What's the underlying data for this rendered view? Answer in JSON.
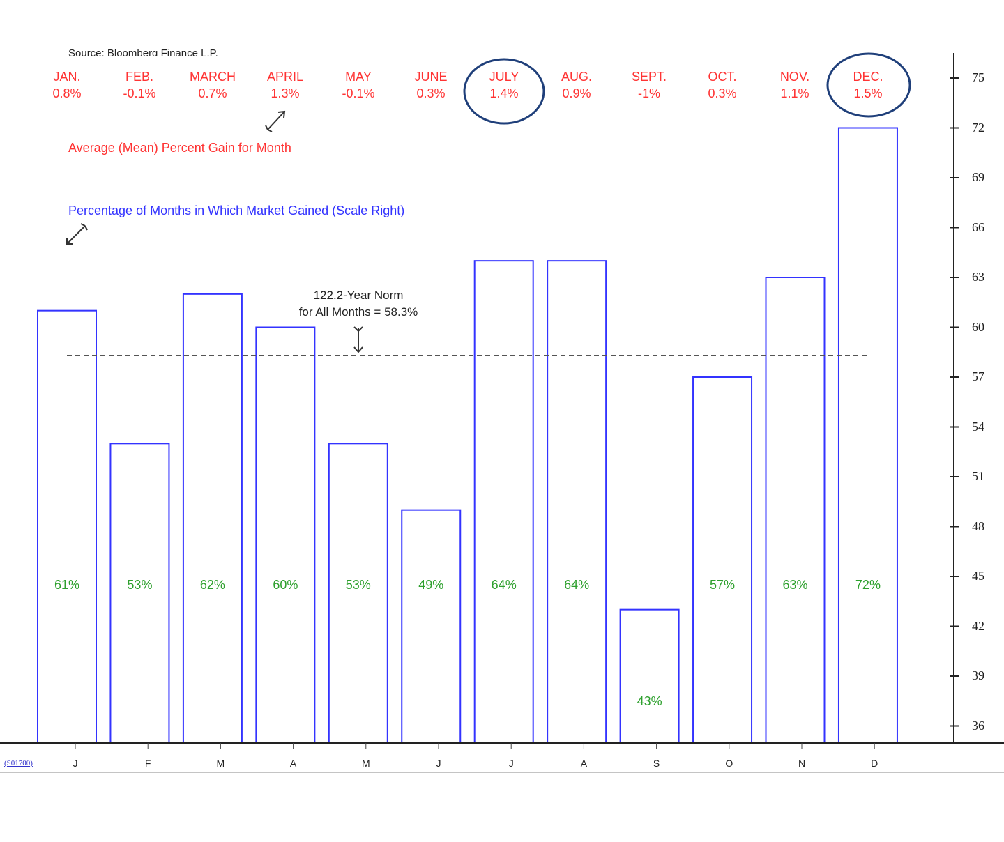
{
  "source_text": "Source: Bloomberg Finance L.P.",
  "ticker_link": "(S01700)",
  "month_headers": [
    {
      "name": "JAN.",
      "value": "0.8%"
    },
    {
      "name": "FEB.",
      "value": "-0.1%"
    },
    {
      "name": "MARCH",
      "value": "0.7%"
    },
    {
      "name": "APRIL",
      "value": "1.3%"
    },
    {
      "name": "MAY",
      "value": "-0.1%"
    },
    {
      "name": "JUNE",
      "value": "0.3%"
    },
    {
      "name": "JULY",
      "value": "1.4%"
    },
    {
      "name": "AUG.",
      "value": "0.9%"
    },
    {
      "name": "SEPT.",
      "value": "-1%"
    },
    {
      "name": "OCT.",
      "value": "0.3%"
    },
    {
      "name": "NOV.",
      "value": "1.1%"
    },
    {
      "name": "DEC.",
      "value": "1.5%"
    }
  ],
  "circled_months": [
    "JULY",
    "DEC."
  ],
  "legend": {
    "mean_gain": "Average (Mean) Percent Gain for Month",
    "pct_months_gained": "Percentage of Months in Which Market Gained (Scale Right)"
  },
  "norm": {
    "line1": "122.2-Year Norm",
    "line2": "for All Months = 58.3%",
    "value": 58.3
  },
  "colors": {
    "bar_outline": "#3333ff",
    "bar_label": "#2ea02e",
    "header_text": "#ff3333",
    "circle": "#1f3f7a",
    "norm_line": "#555555"
  },
  "chart_data": {
    "type": "bar",
    "categories": [
      "J",
      "F",
      "M",
      "A",
      "M",
      "J",
      "J",
      "A",
      "S",
      "O",
      "N",
      "D"
    ],
    "values": [
      61,
      53,
      62,
      60,
      53,
      49,
      64,
      64,
      43,
      57,
      63,
      72
    ],
    "bar_labels": [
      "61%",
      "53%",
      "62%",
      "60%",
      "53%",
      "49%",
      "64%",
      "64%",
      "43%",
      "57%",
      "63%",
      "72%"
    ],
    "monthly_mean_gain_percent": [
      0.8,
      -0.1,
      0.7,
      1.3,
      -0.1,
      0.3,
      1.4,
      0.9,
      -1,
      0.3,
      1.1,
      1.5
    ],
    "y_axis_side": "right",
    "y_ticks": [
      36,
      39,
      42,
      45,
      48,
      51,
      54,
      57,
      60,
      63,
      66,
      69,
      72,
      75
    ],
    "ylim": [
      34.8,
      75
    ],
    "reference_line": 58.3,
    "grid": false
  }
}
